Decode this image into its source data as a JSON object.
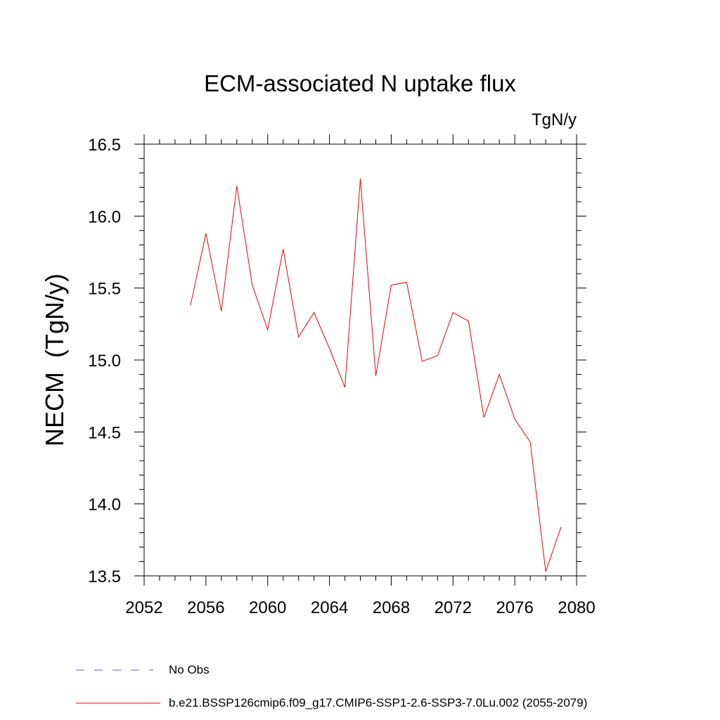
{
  "chart_data": {
    "type": "line",
    "title": "ECM-associated N uptake flux",
    "units": "TgN/y",
    "xlabel": "",
    "ylabel": "NECM  (TgN/y)",
    "xlim": [
      2052,
      2080
    ],
    "ylim": [
      13.5,
      16.5
    ],
    "x_ticks": [
      "2052",
      "2056",
      "2060",
      "2064",
      "2068",
      "2072",
      "2076",
      "2080"
    ],
    "y_ticks": [
      "13.5",
      "14.0",
      "14.5",
      "15.0",
      "15.5",
      "16.0",
      "16.5"
    ],
    "series": [
      {
        "name": "b.e21.BSSP126cmip6.f09_g17.CMIP6-SSP1-2.6-SSP3-7.0Lu.002 (2055-2079)",
        "color": "#e8000b",
        "x": [
          2055,
          2056,
          2057,
          2058,
          2059,
          2060,
          2061,
          2062,
          2063,
          2064,
          2065,
          2066,
          2067,
          2068,
          2069,
          2070,
          2071,
          2072,
          2073,
          2074,
          2075,
          2076,
          2077,
          2078,
          2079
        ],
        "y": [
          15.38,
          15.88,
          15.34,
          16.21,
          15.52,
          15.21,
          15.77,
          15.16,
          15.33,
          15.08,
          14.81,
          16.26,
          14.89,
          15.52,
          15.54,
          14.99,
          15.03,
          15.33,
          15.27,
          14.6,
          14.9,
          14.59,
          14.43,
          13.53,
          13.84
        ]
      }
    ],
    "legend": {
      "placement": "bottom-left",
      "entries": [
        {
          "label": "No Obs",
          "color": "#6a5acd",
          "style": "dashed"
        },
        {
          "label": "b.e21.BSSP126cmip6.f09_g17.CMIP6-SSP1-2.6-SSP3-7.0Lu.002 (2055-2079)",
          "color": "#e8000b",
          "style": "solid"
        }
      ]
    },
    "grid": false
  }
}
